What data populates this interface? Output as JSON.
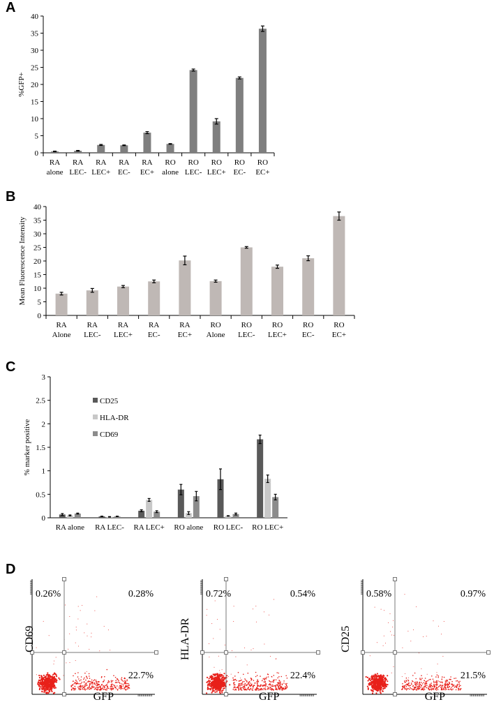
{
  "panels": {
    "A": "A",
    "B": "B",
    "C": "C",
    "D": "D"
  },
  "chart_data": [
    {
      "id": "A",
      "type": "bar",
      "ylabel": "%GFP+",
      "ylim": [
        0,
        40
      ],
      "yticks": [
        0,
        5,
        10,
        15,
        20,
        25,
        30,
        35,
        40
      ],
      "color": "#7f7f7f",
      "categories": [
        [
          "RA",
          "alone"
        ],
        [
          "RA",
          "LEC-"
        ],
        [
          "RA",
          "LEC+"
        ],
        [
          "RA",
          "EC-"
        ],
        [
          "RA",
          "EC+"
        ],
        [
          "RO",
          "alone"
        ],
        [
          "RO",
          "LEC-"
        ],
        [
          "RO",
          "LEC+"
        ],
        [
          "RO",
          "EC-"
        ],
        [
          "RO",
          "EC+"
        ]
      ],
      "values": [
        0.4,
        0.6,
        2.3,
        2.2,
        5.9,
        2.6,
        24.2,
        9.2,
        21.9,
        36.3
      ],
      "errors": [
        0.1,
        0.1,
        0.15,
        0.1,
        0.3,
        0.1,
        0.3,
        0.8,
        0.3,
        0.8
      ]
    },
    {
      "id": "B",
      "type": "bar",
      "ylabel": "Mean Fluorescence Intensity",
      "ylim": [
        0,
        40
      ],
      "yticks": [
        0,
        5,
        10,
        15,
        20,
        25,
        30,
        35,
        40
      ],
      "color": "#bfb8b5",
      "categories": [
        [
          "RA",
          "Alone"
        ],
        [
          "RA",
          "LEC-"
        ],
        [
          "RA",
          "LEC+"
        ],
        [
          "RA",
          "EC-"
        ],
        [
          "RA",
          "EC+"
        ],
        [
          "RO",
          "Alone"
        ],
        [
          "RO",
          "LEC-"
        ],
        [
          "RO",
          "LEC+"
        ],
        [
          "RO",
          "EC-"
        ],
        [
          "RO",
          "EC+"
        ]
      ],
      "values": [
        8.0,
        9.2,
        10.6,
        12.5,
        20.2,
        12.6,
        25.0,
        17.9,
        21.0,
        36.5
      ],
      "errors": [
        0.5,
        0.7,
        0.4,
        0.5,
        1.6,
        0.4,
        0.3,
        0.6,
        0.9,
        1.5
      ]
    },
    {
      "id": "C",
      "type": "bar",
      "ylabel": "% marker positive",
      "ylim": [
        0,
        3
      ],
      "yticks": [
        0,
        0.5,
        1,
        1.5,
        2,
        2.5,
        3
      ],
      "categories": [
        "RA alone",
        "RA LEC-",
        "RA LEC+",
        "RO alone",
        "RO LEC-",
        "RO LEC+"
      ],
      "series": [
        {
          "name": "CD25",
          "color": "#595959",
          "values": [
            0.07,
            0.03,
            0.15,
            0.6,
            0.82,
            1.67
          ],
          "errors": [
            0.02,
            0.005,
            0.02,
            0.11,
            0.22,
            0.09
          ]
        },
        {
          "name": "HLA-DR",
          "color": "#c8c8c8",
          "values": [
            0.05,
            0.02,
            0.38,
            0.1,
            0.04,
            0.83
          ],
          "errors": [
            0.01,
            0.005,
            0.03,
            0.03,
            0.005,
            0.08
          ]
        },
        {
          "name": "CD69",
          "color": "#8c8c8c",
          "values": [
            0.09,
            0.03,
            0.13,
            0.46,
            0.08,
            0.44
          ],
          "errors": [
            0.01,
            0.005,
            0.02,
            0.1,
            0.02,
            0.06
          ]
        }
      ]
    },
    {
      "id": "D",
      "type": "scatter",
      "plots": [
        {
          "ylabel": "CD69",
          "xlabel": "GFP",
          "ul": "0.26%",
          "ur": "0.28%",
          "lr": "22.7%"
        },
        {
          "ylabel": "HLA-DR",
          "xlabel": "GFP",
          "ul": "0.72%",
          "ur": "0.54%",
          "lr": "22.4%"
        },
        {
          "ylabel": "CD25",
          "xlabel": "GFP",
          "ul": "0.58%",
          "ur": "0.97%",
          "lr": "21.5%"
        }
      ]
    }
  ]
}
